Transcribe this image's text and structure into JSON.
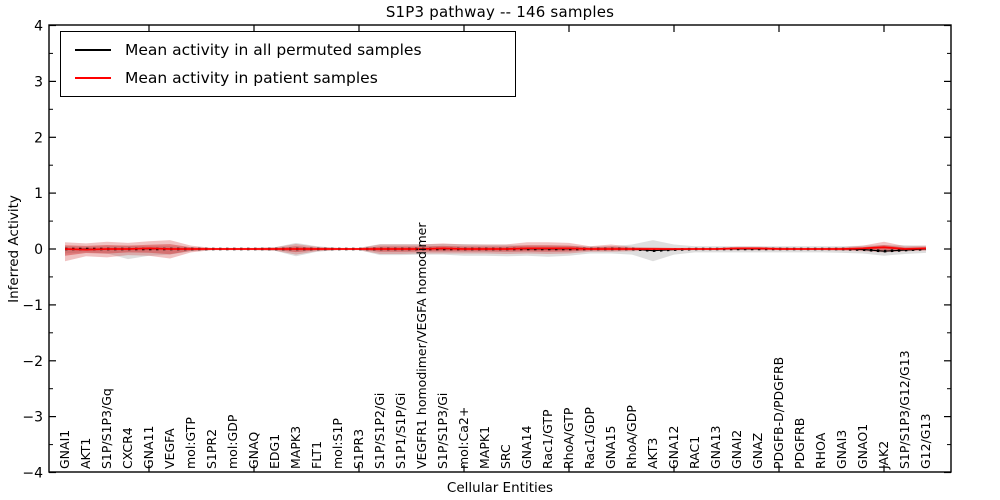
{
  "chart_data": {
    "type": "line",
    "title": "S1P3 pathway -- 146 samples",
    "xlabel": "Cellular Entities",
    "ylabel": "Inferred Activity",
    "ylim": [
      -4,
      4
    ],
    "grid": false,
    "legend_position": "upper left",
    "legend": [
      {
        "label": "Mean activity in all permuted samples",
        "color": "#000000",
        "style": "solid"
      },
      {
        "label": "Mean activity in patient samples",
        "color": "#ff0000",
        "style": "solid"
      }
    ],
    "y_ticks": [
      {
        "v": -4,
        "label": "−4"
      },
      {
        "v": -3,
        "label": "−3"
      },
      {
        "v": -2,
        "label": "−2"
      },
      {
        "v": -1,
        "label": "−1"
      },
      {
        "v": 0,
        "label": "0"
      },
      {
        "v": 1,
        "label": "1"
      },
      {
        "v": 2,
        "label": "2"
      },
      {
        "v": 3,
        "label": "3"
      },
      {
        "v": 4,
        "label": "4"
      }
    ],
    "categories": [
      "GNAI1",
      "AKT1",
      "S1P/S1P3/Gq",
      "CXCR4",
      "GNA11",
      "VEGFA",
      "mol:GTP",
      "S1PR2",
      "mol:GDP",
      "GNAQ",
      "EDG1",
      "MAPK3",
      "FLT1",
      "mol:S1P",
      "S1PR3",
      "S1P/S1P2/Gi",
      "S1P1/S1P/Gi",
      "VEGFR1 homodimer/VEGFA homodimer",
      "S1P/S1P3/Gi",
      "mol:Ca2+",
      "MAPK1",
      "SRC",
      "GNA14",
      "Rac1/GTP",
      "RhoA/GTP",
      "Rac1/GDP",
      "GNA15",
      "RhoA/GDP",
      "AKT3",
      "GNA12",
      "RAC1",
      "GNA13",
      "GNAI2",
      "GNAZ",
      "PDGFB-D/PDGFRB",
      "PDGFRB",
      "RHOA",
      "GNAI3",
      "GNAO1",
      "JAK2",
      "S1P/S1P3/G12/G13",
      "G12/G13"
    ],
    "series": [
      {
        "name": "permuted_mean",
        "values": [
          0,
          0,
          0,
          0,
          0,
          0,
          0,
          0,
          0,
          0,
          0,
          0,
          0,
          0,
          0,
          0,
          0,
          0,
          0,
          0,
          0,
          0,
          0,
          0,
          0,
          0,
          0,
          0,
          -0.03,
          -0.01,
          0,
          0,
          0,
          0,
          0,
          0,
          0,
          0,
          -0.01,
          -0.04,
          -0.02,
          0
        ]
      },
      {
        "name": "patient_mean",
        "values": [
          0,
          -0.01,
          0,
          0,
          0.01,
          0,
          0,
          0,
          0,
          0,
          0,
          0,
          0,
          0,
          0,
          0,
          0,
          0,
          0.01,
          0,
          0,
          0,
          0.01,
          0.01,
          0.01,
          0,
          0,
          0,
          0,
          0,
          0,
          0,
          0.01,
          0.01,
          0,
          0,
          0,
          0,
          0.01,
          0.03,
          0,
          0.01
        ]
      },
      {
        "name": "permuted_band_upper",
        "values": [
          0.05,
          0.04,
          0.05,
          0.06,
          0.05,
          0.05,
          0.03,
          0.02,
          0.02,
          0.02,
          0.03,
          0.11,
          0.05,
          0.02,
          0.02,
          0.09,
          0.09,
          0.09,
          0.09,
          0.09,
          0.08,
          0.08,
          0.06,
          0.06,
          0.06,
          0.05,
          0.05,
          0.08,
          0.16,
          0.08,
          0.05,
          0.05,
          0.05,
          0.05,
          0.05,
          0.05,
          0.05,
          0.05,
          0.06,
          0.07,
          0.07,
          0.06
        ]
      },
      {
        "name": "permuted_band_lower",
        "values": [
          -0.08,
          -0.06,
          -0.08,
          -0.18,
          -0.12,
          -0.1,
          -0.04,
          -0.02,
          -0.02,
          -0.02,
          -0.03,
          -0.13,
          -0.05,
          -0.02,
          -0.02,
          -0.11,
          -0.11,
          -0.1,
          -0.1,
          -0.12,
          -0.12,
          -0.13,
          -0.12,
          -0.14,
          -0.12,
          -0.08,
          -0.08,
          -0.1,
          -0.22,
          -0.1,
          -0.06,
          -0.06,
          -0.06,
          -0.06,
          -0.06,
          -0.06,
          -0.06,
          -0.07,
          -0.08,
          -0.12,
          -0.09,
          -0.07
        ]
      },
      {
        "name": "patient_band_upper",
        "values": [
          0.12,
          0.1,
          0.13,
          0.11,
          0.14,
          0.16,
          0.06,
          0.02,
          0.02,
          0.02,
          0.03,
          0.09,
          0.04,
          0.02,
          0.02,
          0.08,
          0.08,
          0.08,
          0.1,
          0.08,
          0.08,
          0.08,
          0.12,
          0.12,
          0.11,
          0.05,
          0.08,
          0.04,
          0.03,
          0.02,
          0.02,
          0.02,
          0.04,
          0.04,
          0.03,
          0.02,
          0.02,
          0.03,
          0.06,
          0.13,
          0.05,
          0.06
        ]
      },
      {
        "name": "patient_band_lower",
        "values": [
          -0.22,
          -0.13,
          -0.15,
          -0.11,
          -0.12,
          -0.17,
          -0.06,
          -0.02,
          -0.02,
          -0.02,
          -0.03,
          -0.1,
          -0.04,
          -0.02,
          -0.02,
          -0.09,
          -0.09,
          -0.08,
          -0.08,
          -0.08,
          -0.08,
          -0.09,
          -0.08,
          -0.09,
          -0.08,
          -0.05,
          -0.05,
          -0.04,
          -0.03,
          -0.03,
          -0.02,
          -0.02,
          -0.02,
          -0.02,
          -0.02,
          -0.02,
          -0.02,
          -0.03,
          -0.04,
          -0.06,
          -0.04,
          -0.03
        ]
      }
    ],
    "x_major_tick_indices": [
      4,
      9,
      14,
      19,
      24,
      29,
      34,
      39
    ],
    "colors": {
      "permuted_line": "#000000",
      "patient_line": "#ff0000",
      "permuted_fill": "#999999",
      "patient_fill": "#d04040",
      "patient_fill_inner": "#cc2222",
      "spine": "#000000"
    }
  }
}
